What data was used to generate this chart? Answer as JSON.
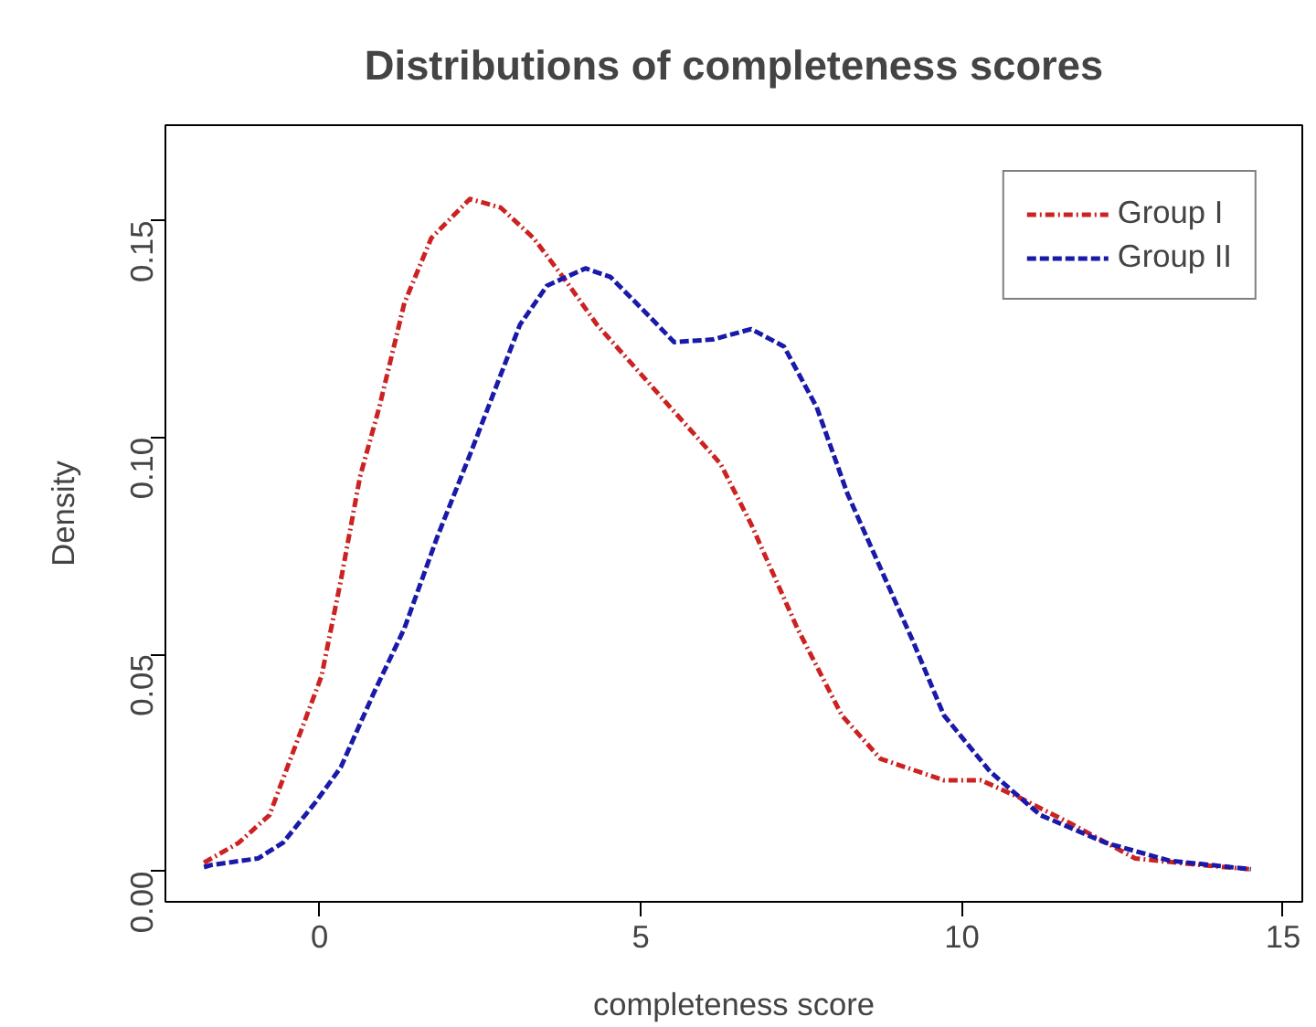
{
  "chart_data": {
    "type": "line",
    "title": "Distributions of completeness scores",
    "xlabel": "completeness score",
    "ylabel": "Density",
    "xlim": [
      -2.4,
      15.3
    ],
    "ylim": [
      -0.007,
      0.172
    ],
    "xticks": [
      0,
      5,
      10,
      15
    ],
    "yticks": [
      {
        "value": 0,
        "label": "0.00"
      },
      {
        "value": 0.05,
        "label": "0.05"
      },
      {
        "value": 0.1,
        "label": "0.10"
      },
      {
        "value": 0.15,
        "label": "0.15"
      }
    ],
    "grid": false,
    "legend": "top right",
    "marker": "none",
    "series": [
      {
        "name": "Group I",
        "color": "#cc2222",
        "line_style": "dashdot",
        "x": [
          -1.8,
          -1.26,
          -0.78,
          0.03,
          0.33,
          0.63,
          0.93,
          1.32,
          1.74,
          2.34,
          2.82,
          3.33,
          3.84,
          4.32,
          4.92,
          5.64,
          6.24,
          6.72,
          7.44,
          8.13,
          8.73,
          9.72,
          10.3,
          10.9,
          11.7,
          12.7,
          13.7,
          14.5
        ],
        "values": [
          0.002,
          0.0066,
          0.013,
          0.045,
          0.067,
          0.091,
          0.107,
          0.131,
          0.146,
          0.155,
          0.153,
          0.146,
          0.136,
          0.126,
          0.116,
          0.104,
          0.094,
          0.08,
          0.056,
          0.036,
          0.026,
          0.021,
          0.021,
          0.017,
          0.011,
          0.003,
          0.0015,
          0.0005
        ]
      },
      {
        "name": "Group II",
        "color": "#1a1aaa",
        "line_style": "dashed",
        "x": [
          -1.8,
          -1.68,
          -0.96,
          -0.57,
          -0.06,
          0.33,
          0.84,
          1.32,
          1.83,
          2.34,
          2.73,
          3.12,
          3.54,
          4.14,
          4.53,
          5.13,
          5.52,
          6.12,
          6.72,
          7.23,
          7.74,
          8.22,
          8.73,
          9.24,
          9.72,
          10.44,
          11.22,
          12.24,
          13.23,
          14.5
        ],
        "values": [
          0.001,
          0.0015,
          0.003,
          0.0066,
          0.016,
          0.024,
          0.041,
          0.056,
          0.077,
          0.096,
          0.111,
          0.126,
          0.135,
          0.139,
          0.137,
          0.128,
          0.122,
          0.1226,
          0.125,
          0.121,
          0.107,
          0.087,
          0.07,
          0.053,
          0.036,
          0.023,
          0.013,
          0.0066,
          0.0025,
          0.0005
        ]
      }
    ]
  }
}
